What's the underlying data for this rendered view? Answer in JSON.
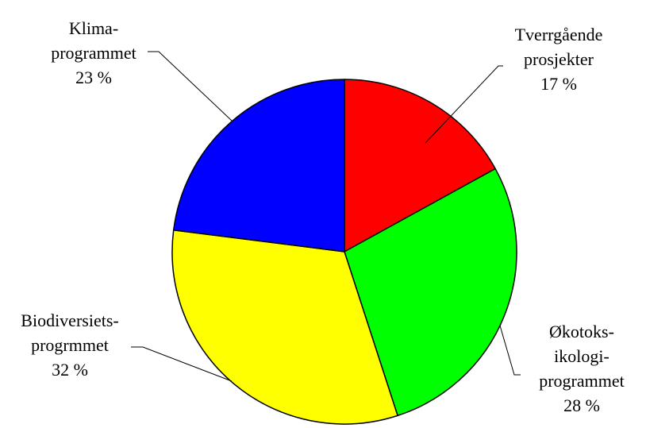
{
  "chart_data": {
    "type": "pie",
    "title": "",
    "slices": [
      {
        "name_lines": [
          "Tverrgående",
          "prosjekter"
        ],
        "value": 17,
        "value_label": "17 %",
        "color": "#ff0000"
      },
      {
        "name_lines": [
          "Økotoks-",
          "ikologi-",
          "programmet"
        ],
        "value": 28,
        "value_label": "28 %",
        "color": "#00ff00"
      },
      {
        "name_lines": [
          "Biodiversiets-",
          "progrmmet"
        ],
        "value": 32,
        "value_label": "32 %",
        "color": "#ffff00"
      },
      {
        "name_lines": [
          "Klima-",
          "programmet"
        ],
        "value": 23,
        "value_label": "23 %",
        "color": "#0000ff"
      }
    ],
    "start": "12 o'clock",
    "direction": "clockwise",
    "legend": "none"
  }
}
